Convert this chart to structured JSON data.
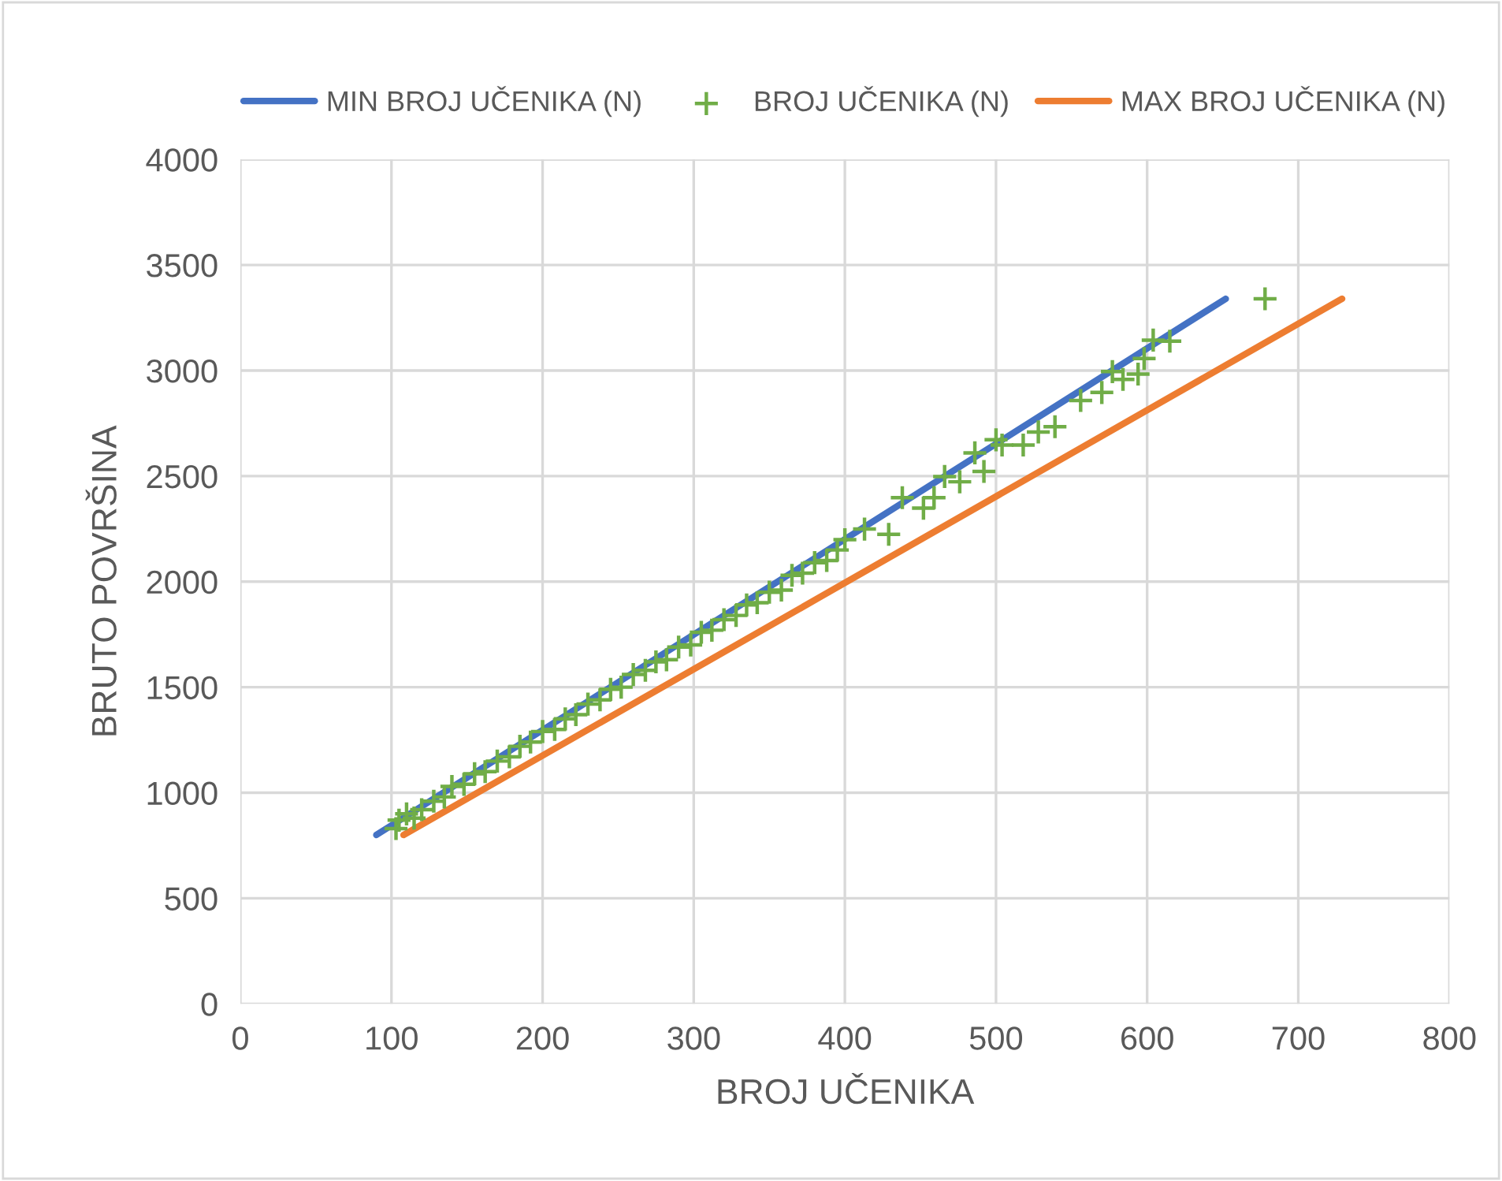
{
  "chart_data": {
    "type": "line",
    "xlabel": "BROJ UČENIKA",
    "ylabel": "BRUTO POVRŠINA",
    "xlim": [
      0,
      800
    ],
    "xticks": [
      0,
      100,
      200,
      300,
      400,
      500,
      600,
      700,
      800
    ],
    "ylim": [
      0,
      4000
    ],
    "yticks": [
      0,
      500,
      1000,
      1500,
      2000,
      2500,
      3000,
      3500,
      4000
    ],
    "grid": true,
    "legend": "top",
    "series": [
      {
        "name": "MIN BROJ UČENIKA (N)",
        "color": "#4472c4",
        "x": [
          90,
          652
        ],
        "values": [
          800,
          3340
        ]
      },
      {
        "name": "BROJ UČENIKA (N)",
        "type": "scatter",
        "marker": "cross",
        "color": "#70ad47",
        "x": [
          103,
          105,
          110,
          115,
          120,
          128,
          135,
          140,
          148,
          155,
          162,
          170,
          178,
          185,
          192,
          200,
          208,
          215,
          222,
          230,
          238,
          245,
          252,
          260,
          268,
          275,
          282,
          290,
          298,
          305,
          312,
          320,
          328,
          335,
          342,
          350,
          358,
          365,
          372,
          380,
          388,
          395,
          400,
          413,
          429,
          438,
          452,
          459,
          466,
          476,
          486,
          492,
          500,
          504,
          518,
          528,
          539,
          556,
          570,
          577,
          584,
          594,
          598,
          604,
          615,
          678
        ],
        "values": [
          830,
          870,
          900,
          880,
          920,
          960,
          980,
          1030,
          1040,
          1090,
          1100,
          1150,
          1170,
          1220,
          1240,
          1290,
          1300,
          1350,
          1370,
          1420,
          1440,
          1490,
          1500,
          1560,
          1580,
          1620,
          1630,
          1690,
          1700,
          1760,
          1770,
          1820,
          1840,
          1890,
          1900,
          1950,
          1960,
          2030,
          2040,
          2090,
          2100,
          2150,
          2199,
          2249,
          2224,
          2398,
          2348,
          2398,
          2498,
          2473,
          2610,
          2522,
          2672,
          2647,
          2647,
          2709,
          2734,
          2858,
          2896,
          2995,
          2958,
          2983,
          3057,
          3144,
          3139,
          3340
        ]
      },
      {
        "name": "MAX BROJ UČENIKA (N)",
        "color": "#ed7d31",
        "x": [
          108,
          729
        ],
        "values": [
          800,
          3340
        ]
      }
    ]
  }
}
